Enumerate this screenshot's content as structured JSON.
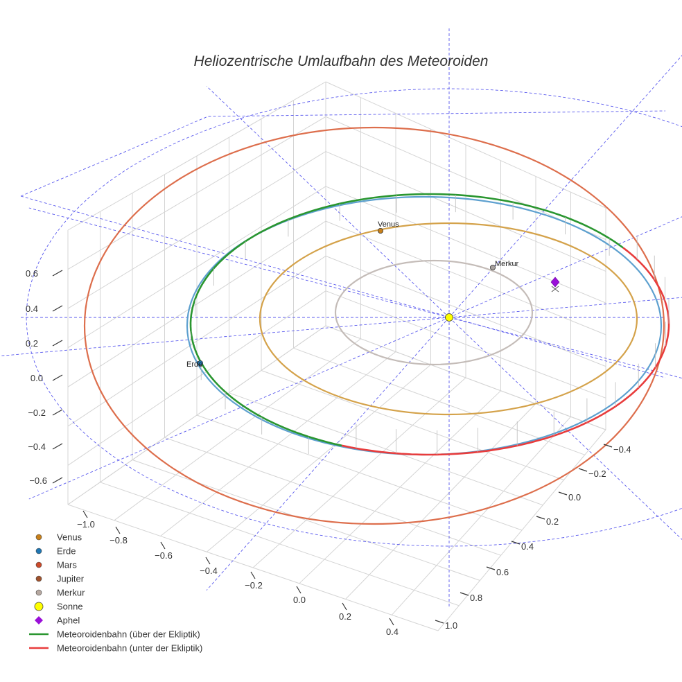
{
  "chart_data": {
    "type": "line",
    "projection": "3d",
    "title": "Heliozentrische Umlaufbahn des Meteoroiden",
    "axes": {
      "x": {
        "ticks": [
          "−1.0",
          "−0.8",
          "−0.6",
          "−0.4",
          "−0.2",
          "0.0",
          "0.2",
          "0.4"
        ],
        "range": [
          -1.1,
          0.5
        ]
      },
      "y": {
        "ticks": [
          "−0.4",
          "−0.2",
          "0.0",
          "0.2",
          "0.4",
          "0.6",
          "0.8",
          "1.0"
        ],
        "range": [
          -0.5,
          1.0
        ]
      },
      "z": {
        "ticks": [
          "0.6",
          "0.4",
          "0.2",
          "0.0",
          "−0.2",
          "−0.4",
          "−0.6"
        ],
        "range": [
          -0.7,
          0.7
        ]
      }
    },
    "orbits": [
      {
        "name": "Merkur",
        "semi_major_au": 0.39,
        "color": "#c4bcb8"
      },
      {
        "name": "Venus",
        "semi_major_au": 0.72,
        "color": "#d4a24a"
      },
      {
        "name": "Erde",
        "semi_major_au": 1.0,
        "color": "#5da0cf"
      },
      {
        "name": "Mars",
        "semi_major_au": 1.52,
        "color": "#dd6e4c"
      }
    ],
    "bodies": [
      {
        "name": "Venus",
        "label": "Venus",
        "color": "#c8801a"
      },
      {
        "name": "Merkur",
        "label": "Merkur",
        "color": "#a8a2a0"
      },
      {
        "name": "Erde",
        "label": "Erde",
        "color": "#1f77b4"
      },
      {
        "name": "Sonne",
        "label": "",
        "color": "#ffff00"
      }
    ],
    "meteoroid": {
      "above_color": "#2a9630",
      "below_color": "#e83c3c",
      "aphel_color": "#9a0fd8"
    },
    "legend": [
      {
        "label": "Venus",
        "marker": "dot",
        "color": "#c8801a"
      },
      {
        "label": "Erde",
        "marker": "dot",
        "color": "#1f77b4"
      },
      {
        "label": "Mars",
        "marker": "dot",
        "color": "#cc4a2a"
      },
      {
        "label": "Jupiter",
        "marker": "dot",
        "color": "#a0522d"
      },
      {
        "label": "Merkur",
        "marker": "dot",
        "color": "#b6a8a0"
      },
      {
        "label": "Sonne",
        "marker": "sun",
        "color": "#ffff00"
      },
      {
        "label": "Aphel",
        "marker": "diamond",
        "color": "#9a0fd8"
      },
      {
        "label": "Meteoroidenbahn (über der Ekliptik)",
        "marker": "line",
        "color": "#2a9630"
      },
      {
        "label": "Meteoroidenbahn (unter der Ekliptik)",
        "marker": "line",
        "color": "#e83c3c"
      }
    ]
  }
}
